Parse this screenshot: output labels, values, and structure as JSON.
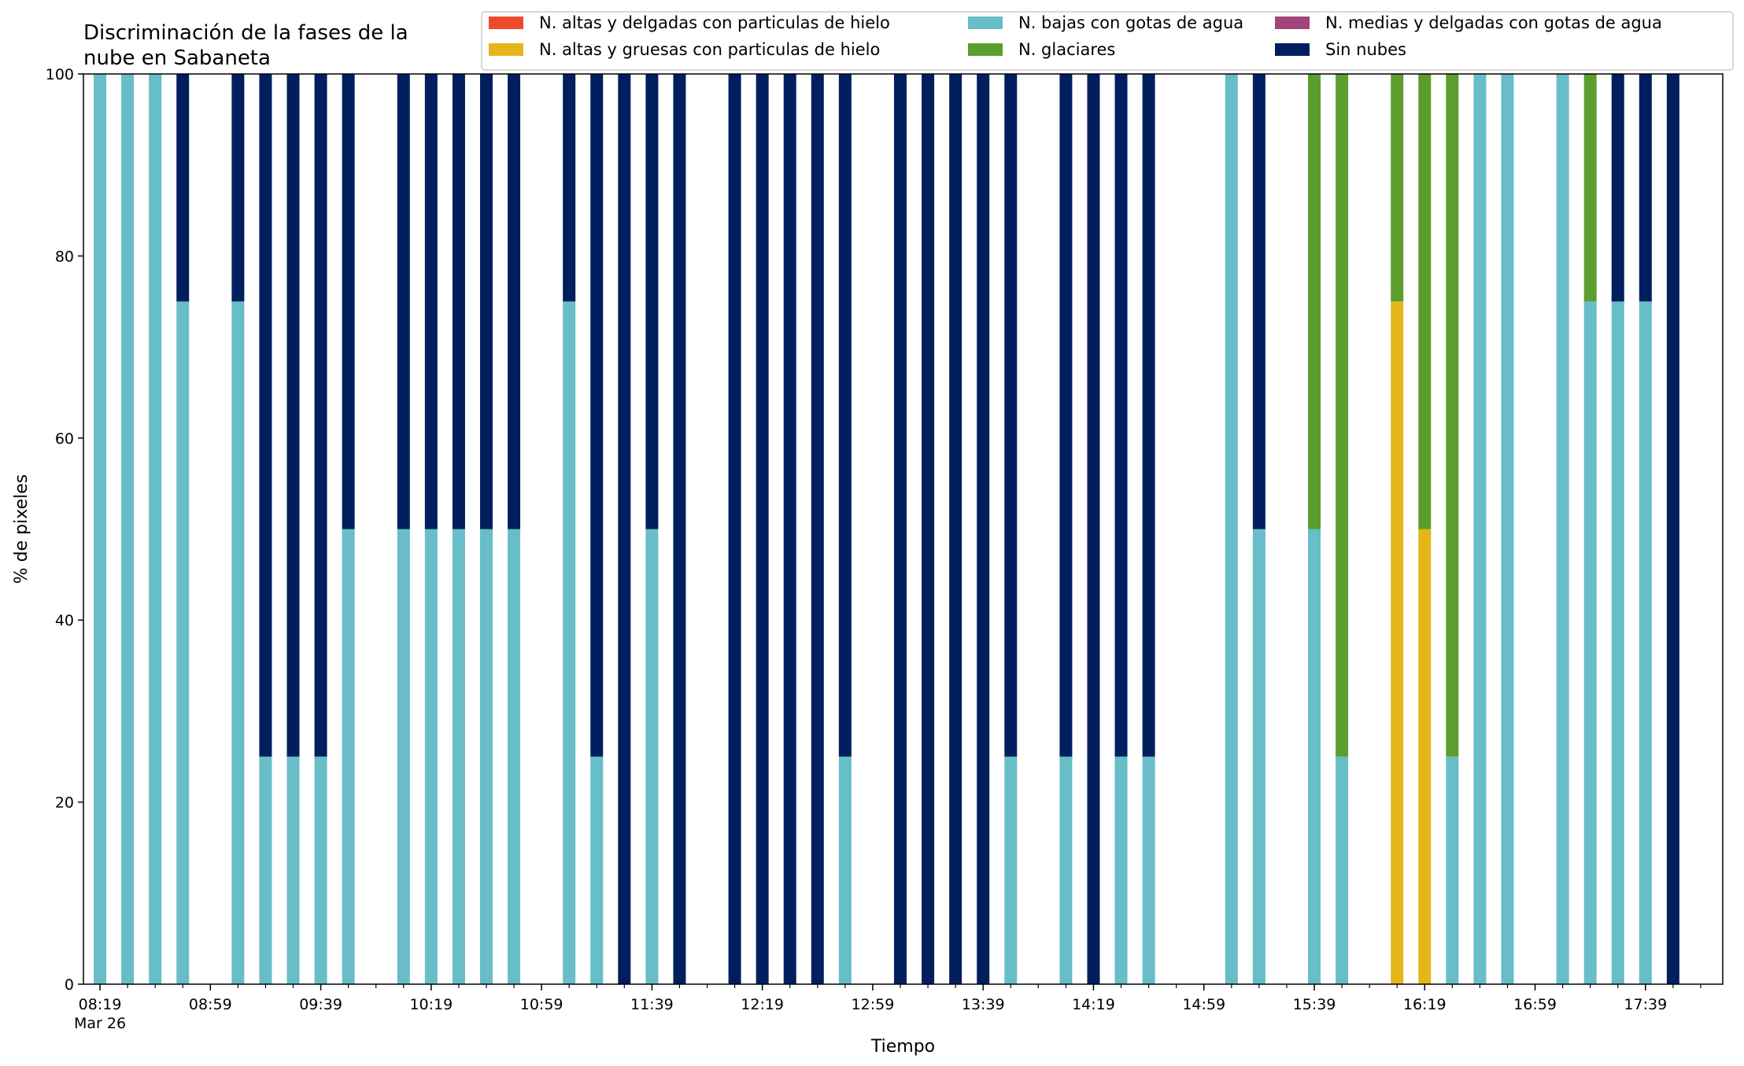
{
  "chart_data": {
    "type": "bar",
    "stacked": true,
    "title": "Discriminación de la fases de la nube en Sabaneta",
    "title_lines": [
      "Discriminación de la fases de la",
      "nube en Sabaneta"
    ],
    "xlabel": "Tiempo",
    "ylabel": "% de pixeles",
    "ylim": [
      0,
      100
    ],
    "yticks": [
      0,
      20,
      40,
      60,
      80,
      100
    ],
    "xlim": [
      "08:13",
      "18:07"
    ],
    "date_label": "Mar 26",
    "xtick_labels": [
      "08:19",
      "08:59",
      "09:39",
      "10:19",
      "10:59",
      "11:39",
      "12:19",
      "12:59",
      "13:39",
      "14:19",
      "14:59",
      "15:39",
      "16:19",
      "16:59",
      "17:39"
    ],
    "xtick_label_times": [
      "08:19",
      "08:59",
      "09:39",
      "10:19",
      "10:59",
      "11:39",
      "12:19",
      "12:59",
      "13:39",
      "14:19",
      "14:59",
      "15:39",
      "16:19",
      "16:59",
      "17:39"
    ],
    "xtick_minor_times": [
      "08:29",
      "08:39",
      "08:49",
      "09:09",
      "09:19",
      "09:29",
      "09:49",
      "09:59",
      "10:09",
      "10:29",
      "10:39",
      "10:49",
      "11:09",
      "11:19",
      "11:29",
      "11:49",
      "11:59",
      "12:09",
      "12:29",
      "12:39",
      "12:49",
      "13:09",
      "13:19",
      "13:29",
      "13:49",
      "13:59",
      "14:09",
      "14:29",
      "14:39",
      "14:49",
      "15:09",
      "15:19",
      "15:29",
      "15:49",
      "15:59",
      "16:09",
      "16:29",
      "16:39",
      "16:49",
      "17:09",
      "17:19",
      "17:29",
      "17:49",
      "17:59"
    ],
    "legend_position": "top",
    "legend_columns": 3,
    "x": [
      "08:19",
      "08:29",
      "08:39",
      "08:49",
      "09:09",
      "09:19",
      "09:29",
      "09:39",
      "09:49",
      "10:09",
      "10:19",
      "10:29",
      "10:39",
      "10:49",
      "11:09",
      "11:19",
      "11:29",
      "11:39",
      "11:49",
      "12:09",
      "12:19",
      "12:29",
      "12:39",
      "12:49",
      "13:09",
      "13:19",
      "13:29",
      "13:39",
      "13:49",
      "14:09",
      "14:19",
      "14:29",
      "14:39",
      "15:09",
      "15:19",
      "15:39",
      "15:49",
      "16:09",
      "16:19",
      "16:29",
      "16:39",
      "16:49",
      "17:09",
      "17:19",
      "17:29",
      "17:39",
      "17:49"
    ],
    "series": [
      {
        "name": "N. altas y delgadas con particulas de hielo",
        "color": "#EE4B2B",
        "values": [
          0,
          0,
          0,
          0,
          0,
          0,
          0,
          0,
          0,
          0,
          0,
          0,
          0,
          0,
          0,
          0,
          0,
          0,
          0,
          0,
          0,
          0,
          0,
          0,
          0,
          0,
          0,
          0,
          0,
          0,
          0,
          0,
          0,
          0,
          0,
          0,
          0,
          0,
          0,
          0,
          0,
          0,
          0,
          0,
          0,
          0,
          0
        ]
      },
      {
        "name": "N. altas y gruesas con particulas de hielo",
        "color": "#E4B61A",
        "values": [
          0,
          0,
          0,
          0,
          0,
          0,
          0,
          0,
          0,
          0,
          0,
          0,
          0,
          0,
          0,
          0,
          0,
          0,
          0,
          0,
          0,
          0,
          0,
          0,
          0,
          0,
          0,
          0,
          0,
          0,
          0,
          0,
          0,
          0,
          0,
          0,
          0,
          75,
          50,
          0,
          0,
          0,
          0,
          0,
          0,
          0,
          0
        ]
      },
      {
        "name": "N. bajas con gotas de agua",
        "color": "#67BDC8",
        "values": [
          100,
          100,
          100,
          75,
          75,
          25,
          25,
          25,
          50,
          50,
          50,
          50,
          50,
          50,
          75,
          25,
          0,
          50,
          0,
          0,
          0,
          0,
          0,
          25,
          0,
          0,
          0,
          0,
          25,
          25,
          0,
          25,
          25,
          100,
          50,
          50,
          25,
          0,
          0,
          25,
          100,
          100,
          100,
          75,
          75,
          75,
          0
        ]
      },
      {
        "name": "N. glaciares",
        "color": "#5C9E2D",
        "values": [
          0,
          0,
          0,
          0,
          0,
          0,
          0,
          0,
          0,
          0,
          0,
          0,
          0,
          0,
          0,
          0,
          0,
          0,
          0,
          0,
          0,
          0,
          0,
          0,
          0,
          0,
          0,
          0,
          0,
          0,
          0,
          0,
          0,
          0,
          0,
          50,
          75,
          25,
          50,
          75,
          0,
          0,
          0,
          25,
          0,
          0,
          0
        ]
      },
      {
        "name": "N. medias y delgadas con gotas de agua",
        "color": "#A2457A",
        "values": [
          0,
          0,
          0,
          0,
          0,
          0,
          0,
          0,
          0,
          0,
          0,
          0,
          0,
          0,
          0,
          0,
          0,
          0,
          0,
          0,
          0,
          0,
          0,
          0,
          0,
          0,
          0,
          0,
          0,
          0,
          0,
          0,
          0,
          0,
          0,
          0,
          0,
          0,
          0,
          0,
          0,
          0,
          0,
          0,
          0,
          0,
          0
        ]
      },
      {
        "name": "Sin nubes",
        "color": "#011F5E",
        "values": [
          0,
          0,
          0,
          25,
          25,
          75,
          75,
          75,
          50,
          50,
          50,
          50,
          50,
          50,
          25,
          75,
          100,
          50,
          100,
          100,
          100,
          100,
          100,
          75,
          100,
          100,
          100,
          100,
          75,
          75,
          100,
          75,
          75,
          0,
          50,
          0,
          0,
          0,
          0,
          0,
          0,
          0,
          0,
          0,
          25,
          25,
          100
        ]
      }
    ]
  }
}
